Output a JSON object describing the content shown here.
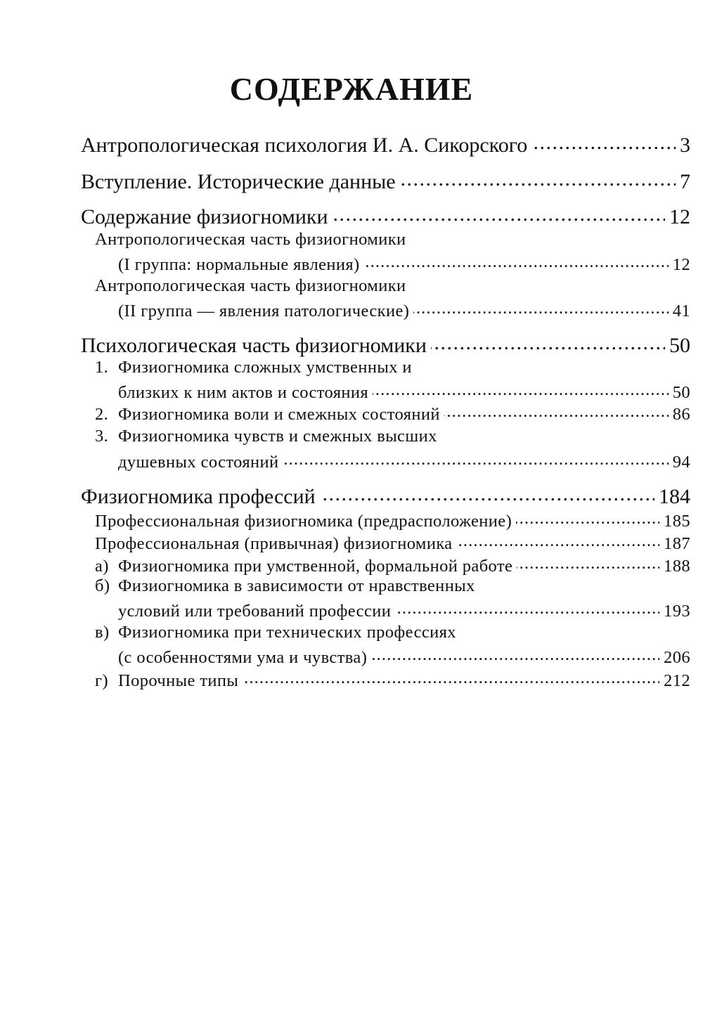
{
  "title": "СОДЕРЖАНИЕ",
  "entries": [
    {
      "text": "Антропологическая психология И. А. Сикорского",
      "page": "3"
    },
    {
      "text": "Вступление. Исторические данные",
      "page": "7"
    },
    {
      "text": "Содержание физиогномики",
      "page": "12",
      "children": [
        {
          "lines": [
            "Антропологическая часть физиогномики",
            "(I группа: нормальные явления)"
          ],
          "page": "12"
        },
        {
          "lines": [
            "Антропологическая часть физиогномики",
            "(II группа — явления патологические)"
          ],
          "page": "41"
        }
      ]
    },
    {
      "text": "Психологическая часть физиогномики",
      "page": "50",
      "children": [
        {
          "prefix": "1.",
          "lines": [
            "Физиогномика сложных умственных и",
            "близких к ним актов и состояния"
          ],
          "page": "50"
        },
        {
          "prefix": "2.",
          "lines": [
            "Физиогномика воли и смежных состояний"
          ],
          "page": "86"
        },
        {
          "prefix": "3.",
          "lines": [
            "Физиогномика чувств и смежных высших",
            "душевных состояний"
          ],
          "page": "94"
        }
      ]
    },
    {
      "text": "Физиогномика профессий",
      "page": "184",
      "children": [
        {
          "lines": [
            "Профессиональная физиогномика (предрасположение)"
          ],
          "page": "185"
        },
        {
          "lines": [
            "Профессиональная (привычная) физиогномика"
          ],
          "page": "187"
        },
        {
          "prefix": "а)",
          "lines": [
            "Физиогномика при умственной, формальной работе"
          ],
          "page": "188"
        },
        {
          "prefix": "б)",
          "lines": [
            "Физиогномика в зависимости от нравственных",
            "условий или требований профессии"
          ],
          "page": "193"
        },
        {
          "prefix": "в)",
          "lines": [
            "Физиогномика при технических профессиях",
            "(с особенностями ума и чувства)"
          ],
          "page": "206"
        },
        {
          "prefix": "г)",
          "lines": [
            "Порочные типы"
          ],
          "page": "212"
        }
      ]
    }
  ]
}
